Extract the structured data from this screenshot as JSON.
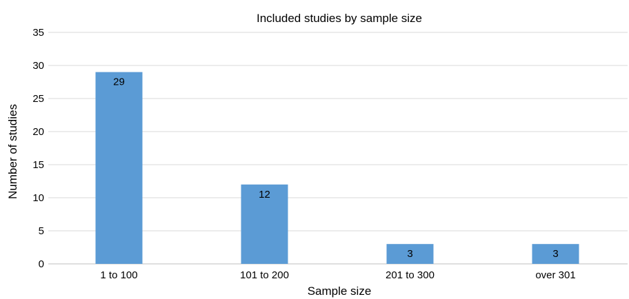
{
  "chart_data": {
    "type": "bar",
    "title": "Included studies by sample size",
    "xlabel": "Sample size",
    "ylabel": "Number of studies",
    "categories": [
      "1 to 100",
      "101 to 200",
      "201 to 300",
      "over 301"
    ],
    "values": [
      29,
      12,
      3,
      3
    ],
    "ylim": [
      0,
      35
    ],
    "yticks": [
      0,
      5,
      10,
      15,
      20,
      25,
      30,
      35
    ],
    "grid": true,
    "legend": "none",
    "bar_color": "#5b9bd5",
    "data_labels": true
  }
}
